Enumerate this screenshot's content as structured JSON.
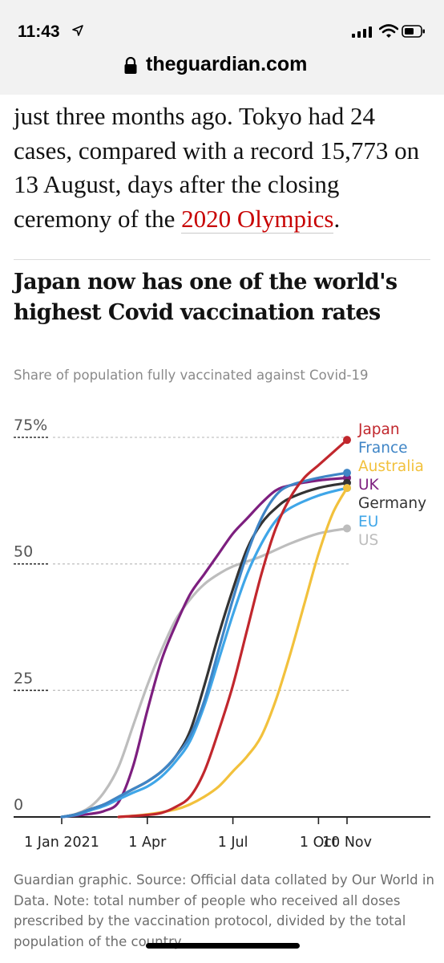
{
  "status_bar": {
    "time": "11:43"
  },
  "browser": {
    "url": "theguardian.com"
  },
  "article": {
    "paragraph_text": "just three months ago. Tokyo had 24 cases, compared with a record 15,773 on 13 August, days after the closing ceremony of the ",
    "link_text": "2020 Olympics",
    "trailing_text": "."
  },
  "chart_data": {
    "type": "line",
    "title": "Japan now has one of the world's highest Covid vaccination rates",
    "subtitle": "Share of population fully vaccinated against Covid-19",
    "y_ticks": [
      {
        "value": 75,
        "label": "75%"
      },
      {
        "value": 50,
        "label": "50"
      },
      {
        "value": 25,
        "label": "25"
      },
      {
        "value": 0,
        "label": "0"
      }
    ],
    "x_ticks": [
      {
        "value": 0,
        "label": "1 Jan 2021"
      },
      {
        "value": 3,
        "label": "1 Apr"
      },
      {
        "value": 6,
        "label": "1 Jul"
      },
      {
        "value": 9,
        "label": "1 Oct"
      },
      {
        "value": 10,
        "label": "10 Nov"
      }
    ],
    "x_unit": "months since 1 Jan 2021",
    "xlim": [
      0,
      10.3
    ],
    "ylim": [
      0,
      78
    ],
    "legend_placement": "top-right",
    "series": [
      {
        "name": "US",
        "color": "#bdbdbd",
        "points": [
          [
            0,
            0
          ],
          [
            0.5,
            0.6
          ],
          [
            1,
            2
          ],
          [
            1.5,
            5
          ],
          [
            2,
            10
          ],
          [
            2.5,
            18
          ],
          [
            3,
            26
          ],
          [
            3.5,
            33
          ],
          [
            4,
            39
          ],
          [
            4.5,
            43
          ],
          [
            5,
            46
          ],
          [
            5.5,
            48
          ],
          [
            6,
            49.5
          ],
          [
            7,
            51.5
          ],
          [
            8,
            54
          ],
          [
            9,
            56
          ],
          [
            10,
            57
          ]
        ]
      },
      {
        "name": "UK",
        "color": "#7d1f7f",
        "points": [
          [
            0,
            0
          ],
          [
            0.5,
            0.3
          ],
          [
            1,
            0.6
          ],
          [
            1.5,
            1.2
          ],
          [
            2,
            3
          ],
          [
            2.5,
            10
          ],
          [
            3,
            21
          ],
          [
            3.5,
            31
          ],
          [
            4,
            38
          ],
          [
            4.5,
            44
          ],
          [
            5,
            48
          ],
          [
            5.5,
            52
          ],
          [
            6,
            56
          ],
          [
            6.5,
            59
          ],
          [
            7,
            62
          ],
          [
            7.5,
            64.5
          ],
          [
            8,
            65.5
          ],
          [
            9,
            66.5
          ],
          [
            10,
            67
          ]
        ]
      },
      {
        "name": "Germany",
        "color": "#333333",
        "points": [
          [
            0,
            0
          ],
          [
            0.5,
            0.5
          ],
          [
            1,
            1.5
          ],
          [
            1.5,
            2.5
          ],
          [
            2,
            4
          ],
          [
            2.5,
            5.5
          ],
          [
            3,
            7
          ],
          [
            3.5,
            9
          ],
          [
            4,
            12
          ],
          [
            4.5,
            17
          ],
          [
            5,
            26
          ],
          [
            5.5,
            36
          ],
          [
            6,
            45
          ],
          [
            6.5,
            53
          ],
          [
            7,
            58
          ],
          [
            7.5,
            61
          ],
          [
            8,
            63
          ],
          [
            9,
            65
          ],
          [
            10,
            66
          ]
        ]
      },
      {
        "name": "EU",
        "color": "#3fa6e8",
        "points": [
          [
            0,
            0
          ],
          [
            0.5,
            0.4
          ],
          [
            1,
            1.3
          ],
          [
            1.5,
            2.2
          ],
          [
            2,
            3.5
          ],
          [
            2.5,
            4.8
          ],
          [
            3,
            6
          ],
          [
            3.5,
            8
          ],
          [
            4,
            11
          ],
          [
            4.5,
            15
          ],
          [
            5,
            22
          ],
          [
            5.5,
            31
          ],
          [
            6,
            40
          ],
          [
            6.5,
            48
          ],
          [
            7,
            54
          ],
          [
            7.5,
            58.5
          ],
          [
            8,
            61
          ],
          [
            9,
            63.5
          ],
          [
            10,
            65
          ]
        ]
      },
      {
        "name": "France",
        "color": "#3f85c6",
        "points": [
          [
            0,
            0
          ],
          [
            0.5,
            0.5
          ],
          [
            1,
            1.5
          ],
          [
            1.5,
            2.5
          ],
          [
            2,
            4
          ],
          [
            2.5,
            5.5
          ],
          [
            3,
            7
          ],
          [
            3.5,
            9
          ],
          [
            4,
            12
          ],
          [
            4.5,
            16
          ],
          [
            5,
            23
          ],
          [
            5.5,
            33
          ],
          [
            6,
            43
          ],
          [
            6.5,
            52
          ],
          [
            7,
            59
          ],
          [
            7.5,
            63.5
          ],
          [
            8,
            65.5
          ],
          [
            9,
            67
          ],
          [
            10,
            68
          ]
        ]
      },
      {
        "name": "Australia",
        "color": "#f2c13c",
        "points": [
          [
            2,
            0
          ],
          [
            3,
            0.5
          ],
          [
            4,
            1.5
          ],
          [
            4.5,
            2.5
          ],
          [
            5,
            4
          ],
          [
            5.5,
            6
          ],
          [
            6,
            9
          ],
          [
            6.5,
            12
          ],
          [
            7,
            16
          ],
          [
            7.5,
            23
          ],
          [
            8,
            32
          ],
          [
            8.5,
            42
          ],
          [
            9,
            52
          ],
          [
            9.5,
            60
          ],
          [
            10,
            65
          ]
        ]
      },
      {
        "name": "Japan",
        "color": "#c1272d",
        "points": [
          [
            2,
            0
          ],
          [
            3,
            0.4
          ],
          [
            3.5,
            0.8
          ],
          [
            4,
            2
          ],
          [
            4.5,
            4
          ],
          [
            5,
            9
          ],
          [
            5.5,
            17
          ],
          [
            6,
            26
          ],
          [
            6.5,
            37
          ],
          [
            7,
            48
          ],
          [
            7.5,
            57
          ],
          [
            8,
            63
          ],
          [
            8.5,
            67
          ],
          [
            9,
            69.5
          ],
          [
            9.5,
            72
          ],
          [
            10,
            74.5
          ]
        ]
      }
    ],
    "legend": [
      {
        "name": "Japan",
        "color": "#c1272d"
      },
      {
        "name": "France",
        "color": "#3f85c6"
      },
      {
        "name": "Australia",
        "color": "#f2c13c"
      },
      {
        "name": "UK",
        "color": "#7d1f7f"
      },
      {
        "name": "Germany",
        "color": "#333333"
      },
      {
        "name": "EU",
        "color": "#3fa6e8"
      },
      {
        "name": "US",
        "color": "#bdbdbd"
      }
    ]
  },
  "caption": "Guardian graphic. Source: Official data collated by Our World in Data. Note: total number of people who received all doses prescribed by the vaccination protocol, divided by the total population of the country"
}
